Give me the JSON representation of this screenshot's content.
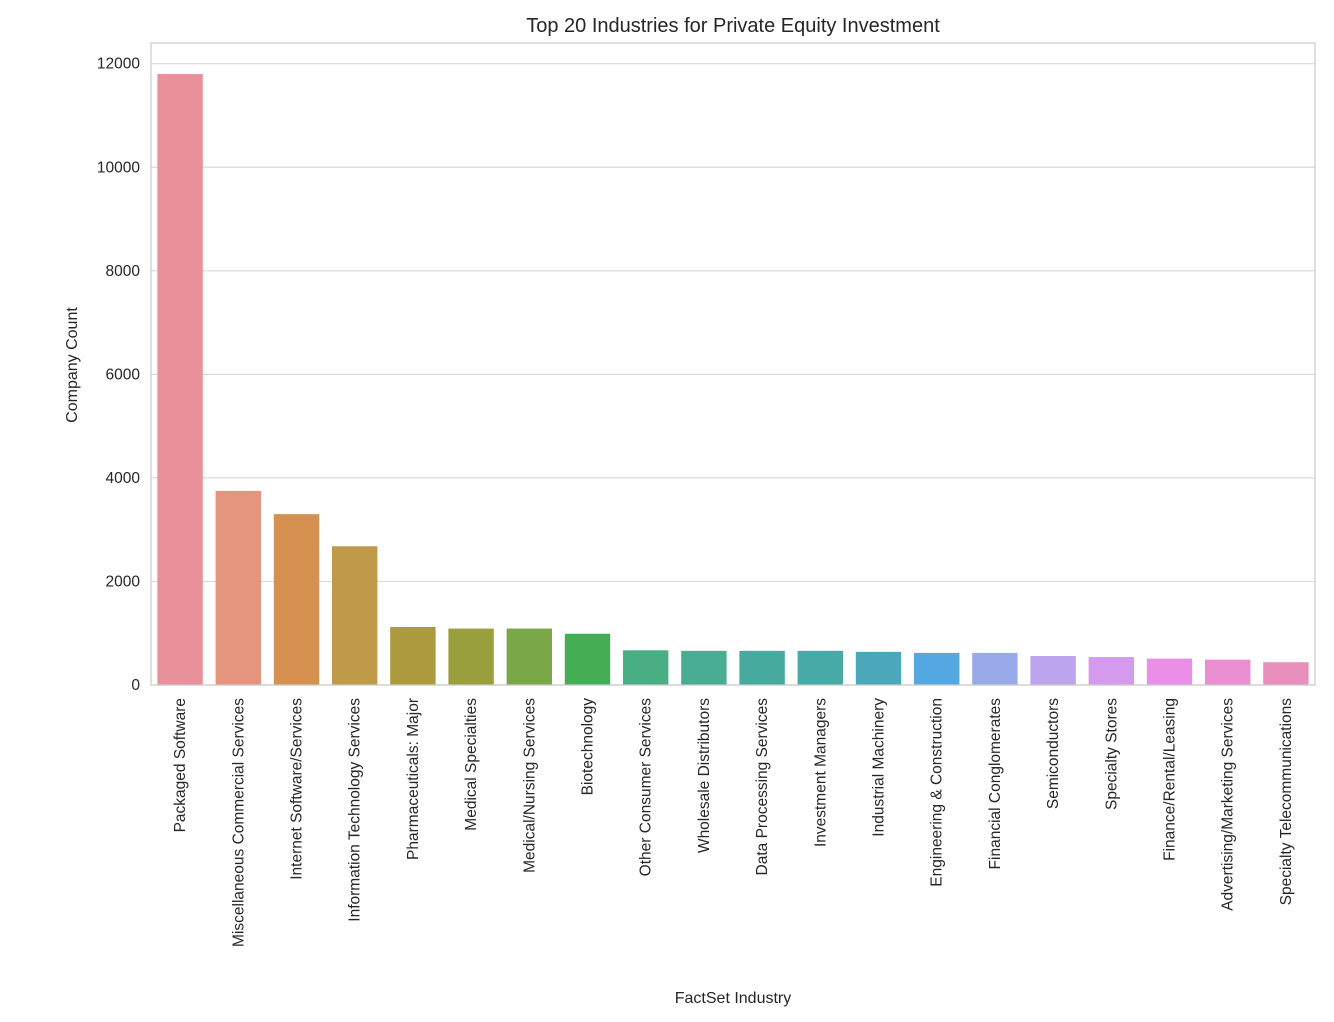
{
  "chart_data": {
    "type": "bar",
    "title": "Top 20 Industries for Private Equity Investment",
    "xlabel": "FactSet Industry",
    "ylabel": "Company Count",
    "ylim": [
      0,
      12400
    ],
    "yticks": [
      0,
      2000,
      4000,
      6000,
      8000,
      10000,
      12000
    ],
    "grid": true,
    "categories": [
      "Packaged Software",
      "Miscellaneous Commercial Services",
      "Internet Software/Services",
      "Information Technology Services",
      "Pharmaceuticals: Major",
      "Medical Specialties",
      "Medical/Nursing Services",
      "Biotechnology",
      "Other Consumer Services",
      "Wholesale Distributors",
      "Data Processing Services",
      "Investment Managers",
      "Industrial Machinery",
      "Engineering & Construction",
      "Financial Conglomerates",
      "Semiconductors",
      "Specialty Stores",
      "Finance/Rental/Leasing",
      "Advertising/Marketing Services",
      "Specialty Telecommunications"
    ],
    "values": [
      11800,
      3750,
      3300,
      2680,
      1120,
      1090,
      1090,
      990,
      670,
      660,
      660,
      660,
      640,
      620,
      620,
      560,
      540,
      510,
      490,
      440
    ],
    "colors": [
      "#e8919b",
      "#e5957e",
      "#d69150",
      "#bf9a48",
      "#ab9a3e",
      "#9a9f3d",
      "#7aa848",
      "#45ad53",
      "#4aae85",
      "#49ad93",
      "#47aa9e",
      "#48aaa7",
      "#4ba8bb",
      "#53a8e1",
      "#98aae8",
      "#bca4ee",
      "#d49aee",
      "#ea8ee7",
      "#e98ed1",
      "#e88fbb"
    ]
  }
}
